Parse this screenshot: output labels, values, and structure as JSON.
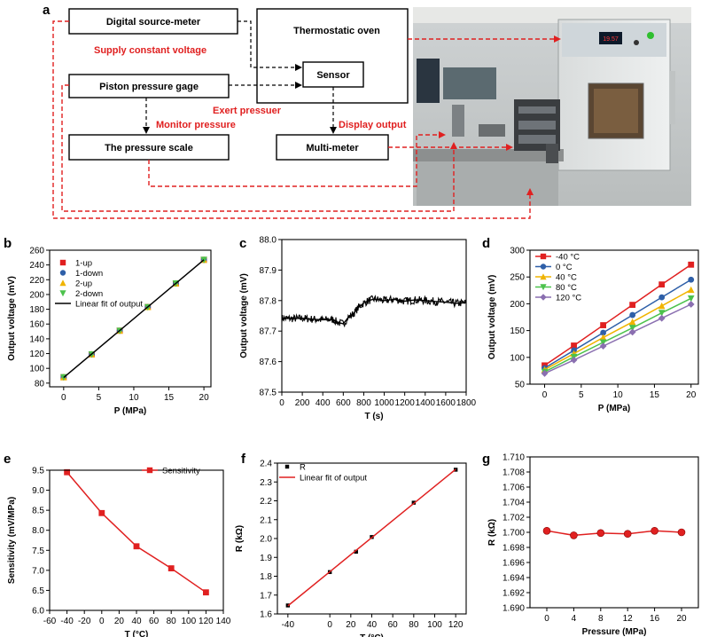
{
  "panel_a": {
    "label": "a",
    "boxes": {
      "source_meter": "Digital source-meter",
      "oven": "Thermostatic oven",
      "sensor": "Sensor",
      "piston": "Piston pressure gage",
      "scale": "The pressure scale",
      "multimeter": "Multi-meter"
    },
    "annotations": {
      "supply": "Supply constant voltage",
      "exert": "Exert pressuer",
      "monitor": "Monitor pressure",
      "display": "Display output"
    },
    "photo": {
      "oven_display": "19.57"
    }
  },
  "chart_data": [
    {
      "id": "b",
      "label": "b",
      "type": "scatter",
      "xlabel": "P (MPa)",
      "ylabel": "Output voltage (mV)",
      "xlim": [
        -2,
        21
      ],
      "ylim": [
        75,
        260
      ],
      "xticks": [
        0,
        5,
        10,
        15,
        20
      ],
      "yticks": [
        80,
        100,
        120,
        140,
        160,
        180,
        200,
        220,
        240,
        260
      ],
      "legend_position": "top-left",
      "series": [
        {
          "name": "1-up",
          "marker": "square",
          "color": "#e02020",
          "x": [
            0,
            4,
            8,
            12,
            16,
            20
          ],
          "y": [
            88,
            119,
            151,
            183,
            215,
            247
          ]
        },
        {
          "name": "1-down",
          "marker": "circle",
          "color": "#2e5fa8",
          "x": [
            0,
            4,
            8,
            12,
            16,
            20
          ],
          "y": [
            88,
            119,
            151,
            183,
            215,
            247
          ]
        },
        {
          "name": "2-up",
          "marker": "triangle-up",
          "color": "#f0b400",
          "x": [
            0,
            4,
            8,
            12,
            16,
            20
          ],
          "y": [
            88,
            119,
            151,
            183,
            215,
            247
          ]
        },
        {
          "name": "2-down",
          "marker": "triangle-down",
          "color": "#4cc24c",
          "x": [
            0,
            4,
            8,
            12,
            16,
            20
          ],
          "y": [
            88,
            119,
            151,
            183,
            215,
            247
          ]
        },
        {
          "name": "Linear fit of output",
          "type": "line",
          "color": "#000000",
          "x": [
            0,
            20
          ],
          "y": [
            87.5,
            247
          ]
        }
      ]
    },
    {
      "id": "c",
      "label": "c",
      "type": "line",
      "xlabel": "T (s)",
      "ylabel": "Output voltage (mV)",
      "xlim": [
        0,
        1800
      ],
      "ylim": [
        87.5,
        88.0
      ],
      "xticks": [
        0,
        200,
        400,
        600,
        800,
        1000,
        1200,
        1400,
        1600,
        1800
      ],
      "yticks": [
        87.5,
        87.6,
        87.7,
        87.8,
        87.9,
        88.0
      ],
      "series": [
        {
          "color": "#000000",
          "x": [
            0,
            100,
            200,
            300,
            400,
            500,
            550,
            600,
            650,
            700,
            750,
            800,
            850,
            900,
            1000,
            1100,
            1200,
            1300,
            1400,
            1500,
            1600,
            1700,
            1800
          ],
          "y": [
            87.742,
            87.741,
            87.742,
            87.739,
            87.737,
            87.738,
            87.728,
            87.724,
            87.745,
            87.757,
            87.778,
            87.792,
            87.8,
            87.805,
            87.8,
            87.804,
            87.798,
            87.802,
            87.8,
            87.797,
            87.795,
            87.791,
            87.793
          ]
        }
      ]
    },
    {
      "id": "d",
      "label": "d",
      "type": "line",
      "xlabel": "P (MPa)",
      "ylabel": "Output voltage (mV)",
      "xlim": [
        -2,
        21
      ],
      "ylim": [
        50,
        300
      ],
      "xticks": [
        0,
        5,
        10,
        15,
        20
      ],
      "yticks": [
        50,
        100,
        150,
        200,
        250,
        300
      ],
      "legend_position": "top-left",
      "series": [
        {
          "name": "-40 °C",
          "color": "#e02020",
          "marker": "square",
          "x": [
            0,
            4,
            8,
            12,
            16,
            20
          ],
          "y": [
            85,
            122,
            160,
            198,
            236,
            273
          ]
        },
        {
          "name": "0 °C",
          "color": "#2e5fa8",
          "marker": "circle",
          "x": [
            0,
            4,
            8,
            12,
            16,
            20
          ],
          "y": [
            80,
            113,
            146,
            179,
            212,
            245
          ]
        },
        {
          "name": "40 °C",
          "color": "#f0b400",
          "marker": "triangle-up",
          "x": [
            0,
            4,
            8,
            12,
            16,
            20
          ],
          "y": [
            77,
            107,
            137,
            166,
            196,
            226
          ]
        },
        {
          "name": "80 °C",
          "color": "#4cc24c",
          "marker": "triangle-down",
          "x": [
            0,
            4,
            8,
            12,
            16,
            20
          ],
          "y": [
            73,
            101,
            128,
            155,
            183,
            210
          ]
        },
        {
          "name": "120 °C",
          "color": "#8a6fb0",
          "marker": "diamond",
          "x": [
            0,
            4,
            8,
            12,
            16,
            20
          ],
          "y": [
            70,
            95,
            121,
            147,
            173,
            199
          ]
        }
      ]
    },
    {
      "id": "e",
      "label": "e",
      "type": "line",
      "xlabel": "T (°C)",
      "ylabel": "Sensitivity (mV/MPa)",
      "xlim": [
        -60,
        140
      ],
      "ylim": [
        6.0,
        9.5
      ],
      "xticks": [
        -60,
        -40,
        -20,
        0,
        20,
        40,
        60,
        80,
        100,
        120,
        140
      ],
      "yticks": [
        6.0,
        6.5,
        7.0,
        7.5,
        8.0,
        8.5,
        9.0,
        9.5
      ],
      "legend_position": "top-right",
      "series": [
        {
          "name": "Sensitivity",
          "color": "#e02020",
          "marker": "square",
          "x": [
            -40,
            0,
            40,
            80,
            120
          ],
          "y": [
            9.45,
            8.43,
            7.6,
            7.05,
            6.45
          ]
        }
      ]
    },
    {
      "id": "f",
      "label": "f",
      "type": "scatter",
      "xlabel": "T (°C)",
      "ylabel": "R (kΩ)",
      "xlim": [
        -50,
        130
      ],
      "ylim": [
        1.6,
        2.4
      ],
      "xticks": [
        -40,
        0,
        20,
        40,
        60,
        80,
        100,
        120
      ],
      "yticks": [
        1.6,
        1.7,
        1.8,
        1.9,
        2.0,
        2.1,
        2.2,
        2.3,
        2.4
      ],
      "legend_position": "top-left",
      "series": [
        {
          "name": "R",
          "color": "#000000",
          "marker": "square",
          "x": [
            -40,
            0,
            25,
            40,
            80,
            120
          ],
          "y": [
            1.645,
            1.822,
            1.93,
            2.008,
            2.19,
            2.365
          ]
        },
        {
          "name": "Linear fit of output",
          "type": "line",
          "color": "#e02020",
          "x": [
            -40,
            120
          ],
          "y": [
            1.643,
            2.367
          ]
        }
      ]
    },
    {
      "id": "g",
      "label": "g",
      "type": "line",
      "xlabel": "Pressure (MPa)",
      "ylabel": "R (kΩ)",
      "xlim": [
        -2.5,
        22.5
      ],
      "ylim": [
        1.69,
        1.71
      ],
      "xticks": [
        0,
        4,
        8,
        12,
        16,
        20
      ],
      "yticks": [
        1.69,
        1.692,
        1.694,
        1.696,
        1.698,
        1.7,
        1.702,
        1.704,
        1.706,
        1.708,
        1.71
      ],
      "series": [
        {
          "color": "#e02020",
          "marker": "circle",
          "x": [
            0,
            4,
            8,
            12,
            16,
            20
          ],
          "y": [
            1.7002,
            1.6996,
            1.6999,
            1.6998,
            1.7002,
            1.7
          ]
        }
      ]
    }
  ]
}
